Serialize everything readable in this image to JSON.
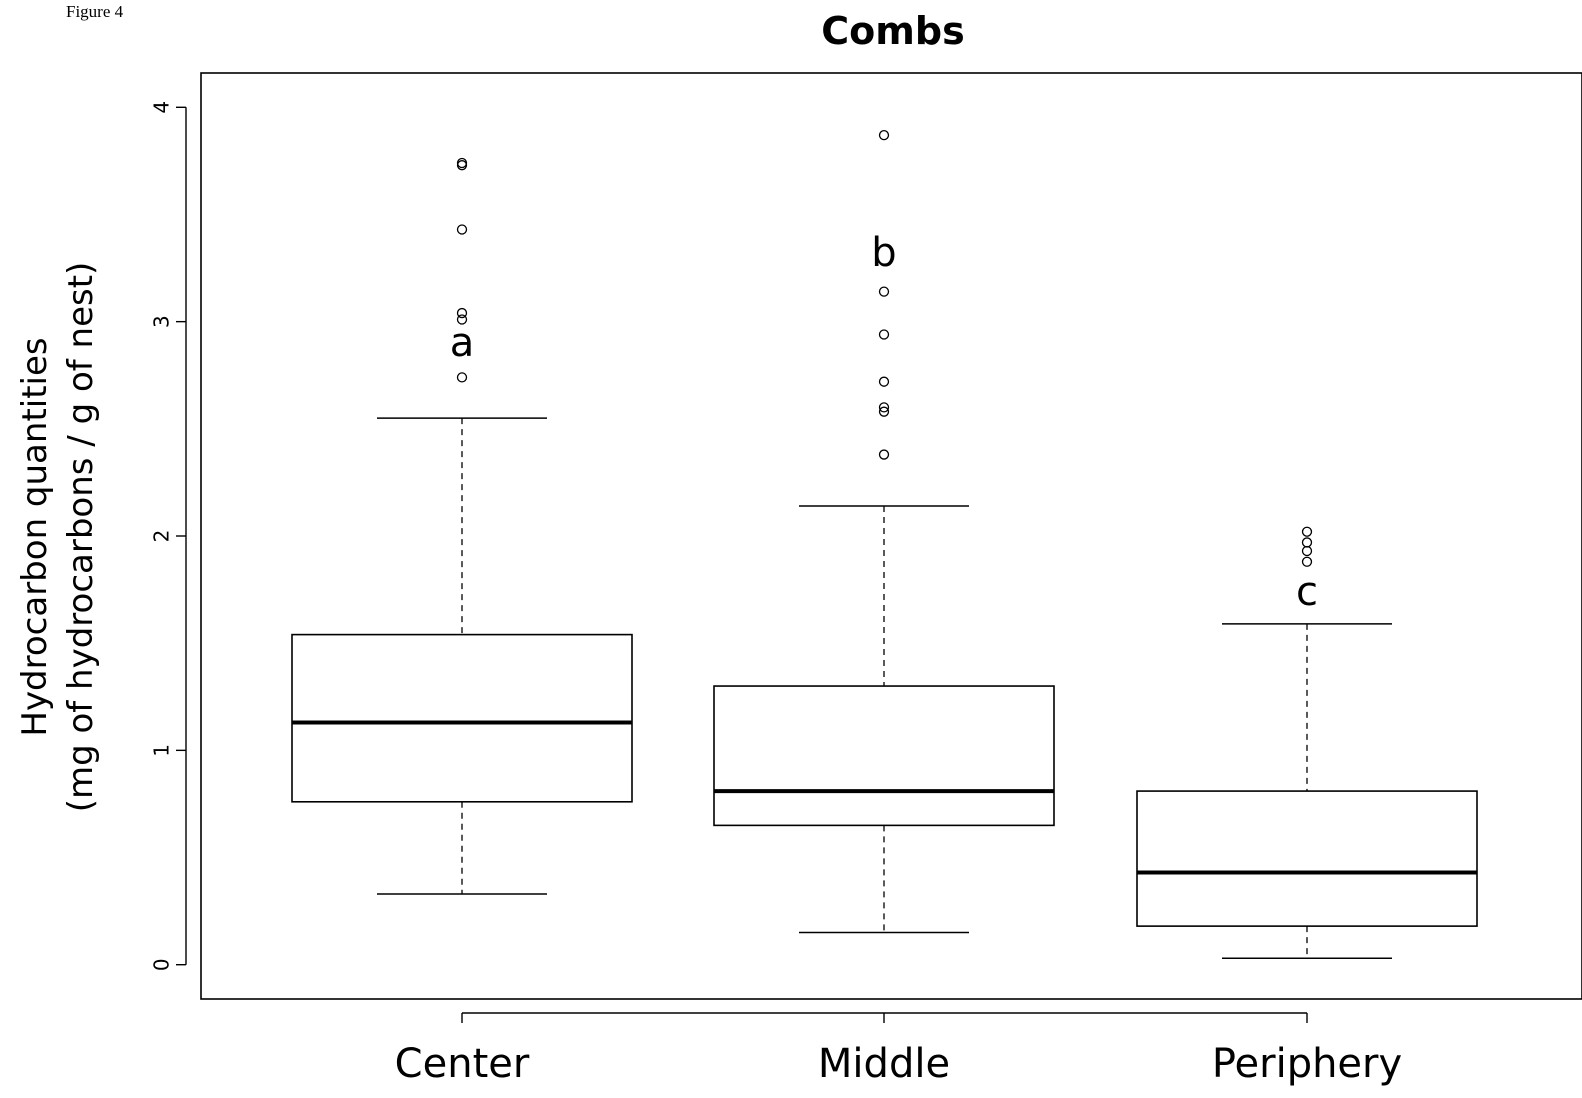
{
  "figure_label": "Figure 4",
  "chart_data": {
    "type": "boxplot",
    "title": "Combs",
    "ylabel_line1": "Hydrocarbon quantities",
    "ylabel_line2": "(mg of hydrocarbons / g of nest)",
    "xlabel": "",
    "ylim": [
      -0.16,
      4.16
    ],
    "yticks": [
      0,
      1,
      2,
      3,
      4
    ],
    "grid": false,
    "categories": [
      "Center",
      "Middle",
      "Periphery"
    ],
    "boxes": [
      {
        "name": "Center",
        "whisker_low": 0.33,
        "q1": 0.76,
        "median": 1.13,
        "q3": 1.54,
        "whisker_high": 2.55,
        "outliers": [
          2.74,
          3.01,
          3.04,
          3.43,
          3.73,
          3.74
        ],
        "letter": "a",
        "letter_y": 2.89
      },
      {
        "name": "Middle",
        "whisker_low": 0.15,
        "q1": 0.65,
        "median": 0.81,
        "q3": 1.3,
        "whisker_high": 2.14,
        "outliers": [
          2.38,
          2.58,
          2.6,
          2.72,
          2.94,
          3.14,
          3.87
        ],
        "letter": "b",
        "letter_y": 3.31
      },
      {
        "name": "Periphery",
        "whisker_low": 0.03,
        "q1": 0.18,
        "median": 0.43,
        "q3": 0.81,
        "whisker_high": 1.59,
        "outliers": [
          1.88,
          1.93,
          1.97,
          2.02
        ],
        "letter": "c",
        "letter_y": 1.73
      }
    ]
  }
}
